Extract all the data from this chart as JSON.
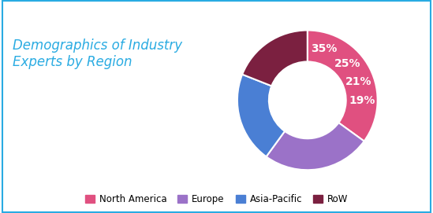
{
  "title": "Demographics of Industry\nExperts by Region",
  "title_color": "#29ABE2",
  "title_fontsize": 12,
  "labels": [
    "North America",
    "Europe",
    "Asia-Pacific",
    "RoW"
  ],
  "values": [
    35,
    25,
    21,
    19
  ],
  "colors": [
    "#E05080",
    "#9B72C8",
    "#4A7FD4",
    "#7B2040"
  ],
  "pct_labels": [
    "35%",
    "25%",
    "21%",
    "19%"
  ],
  "wedge_edge_color": "white",
  "background_color": "#FFFFFF",
  "border_color": "#29ABE2",
  "legend_fontsize": 8.5,
  "pct_fontsize": 10,
  "pct_color": "white",
  "donut_hole": 0.55,
  "start_angle": 90
}
